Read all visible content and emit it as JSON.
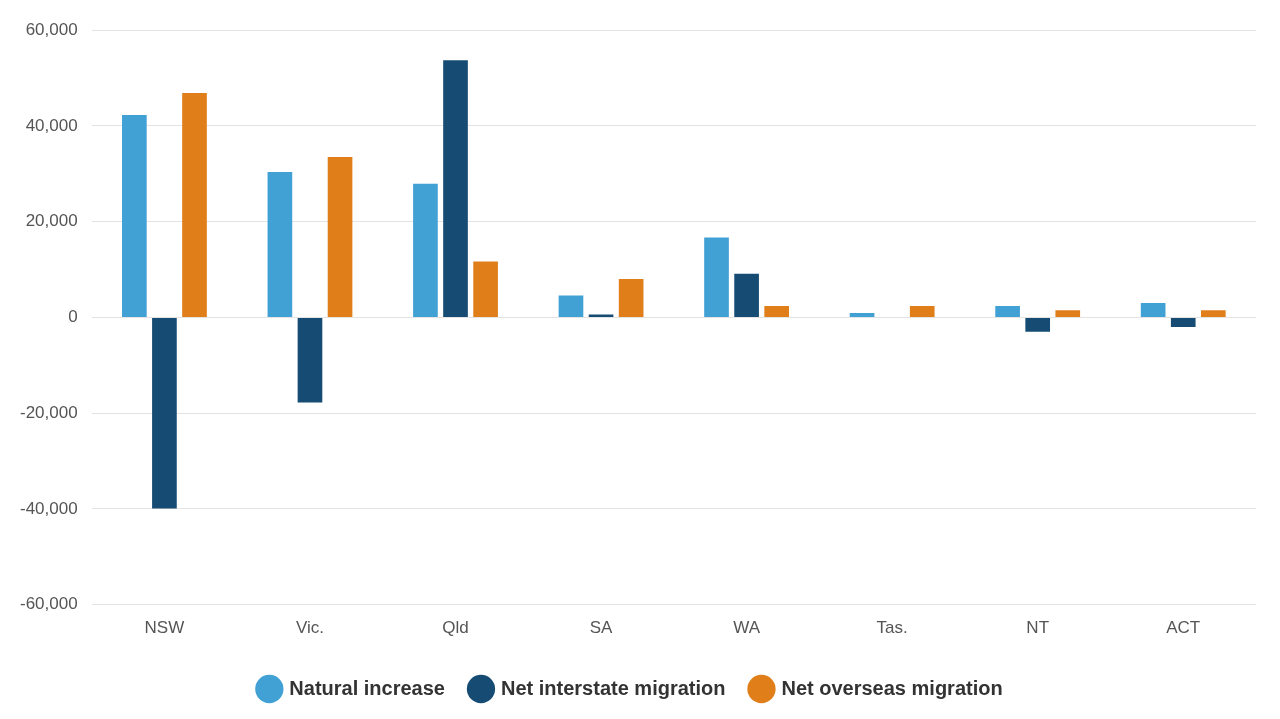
{
  "chart_data": {
    "type": "bar",
    "categories": [
      "NSW",
      "Vic.",
      "Qld",
      "SA",
      "WA",
      "Tas.",
      "NT",
      "ACT"
    ],
    "series": [
      {
        "name": "Natural increase",
        "color": "#41a0d4",
        "values": [
          42300,
          30400,
          27900,
          4600,
          16700,
          900,
          2400,
          3000
        ]
      },
      {
        "name": "Net interstate migration",
        "color": "#164c73",
        "values": [
          -39900,
          -17800,
          53700,
          600,
          9100,
          0,
          -3000,
          -2000
        ]
      },
      {
        "name": "Net overseas migration",
        "color": "#e07f1a",
        "values": [
          46900,
          33500,
          11700,
          8000,
          2400,
          2400,
          1500,
          1500
        ]
      }
    ],
    "ylim": [
      -60000,
      60000
    ],
    "yticks": [
      {
        "value": -60000,
        "label": "-60,000"
      },
      {
        "value": -40000,
        "label": "-40,000"
      },
      {
        "value": -20000,
        "label": "-20,000"
      },
      0,
      {
        "value": 20000,
        "label": "20,000"
      },
      {
        "value": 40000,
        "label": "40,000"
      },
      {
        "value": 60000,
        "label": "60,000"
      }
    ],
    "grid": true,
    "legend": "bottom"
  }
}
